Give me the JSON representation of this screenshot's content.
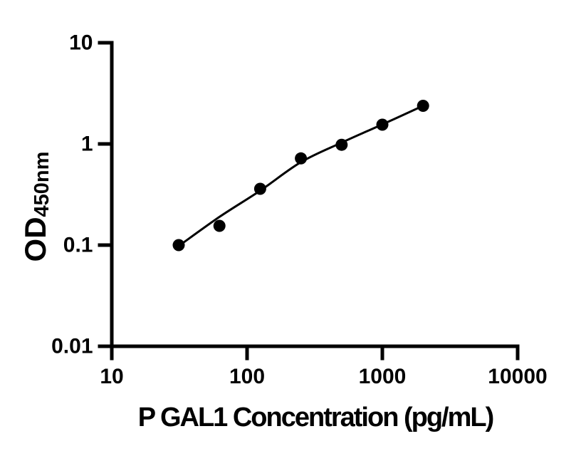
{
  "figure": {
    "kind": "elisa-standard-curve",
    "background_color": "#ffffff",
    "foreground_color": "#000000"
  },
  "chart_data": {
    "type": "scatter",
    "title": "",
    "xlabel": "P GAL1 Concentration (pg/mL)",
    "ylabel": "OD",
    "ylabel_subscript": "450nm",
    "x_scale": "log",
    "y_scale": "log",
    "xlim": [
      10,
      10000
    ],
    "ylim": [
      0.01,
      10
    ],
    "x_ticks": [
      10,
      100,
      1000,
      10000
    ],
    "x_tick_labels": [
      "10",
      "100",
      "1000",
      "10000"
    ],
    "y_ticks": [
      10,
      1,
      0.1,
      0.01
    ],
    "y_tick_labels": [
      "10",
      "1",
      "0.1",
      "0.01"
    ],
    "grid": false,
    "legend": null,
    "marker_color": "#000000",
    "line_color": "#000000",
    "series": [
      {
        "name": "standard-curve-points",
        "marker": "filled-circle",
        "points": [
          {
            "x": 31.25,
            "y": 0.1
          },
          {
            "x": 62.5,
            "y": 0.155
          },
          {
            "x": 125,
            "y": 0.36
          },
          {
            "x": 250,
            "y": 0.72
          },
          {
            "x": 500,
            "y": 0.98
          },
          {
            "x": 1000,
            "y": 1.55
          },
          {
            "x": 2000,
            "y": 2.38
          }
        ]
      }
    ],
    "fit_curve": {
      "x": [
        31.25,
        62.5,
        125,
        250,
        500,
        1000,
        2000
      ],
      "y": [
        0.098,
        0.19,
        0.345,
        0.66,
        1.03,
        1.56,
        2.38
      ]
    }
  }
}
